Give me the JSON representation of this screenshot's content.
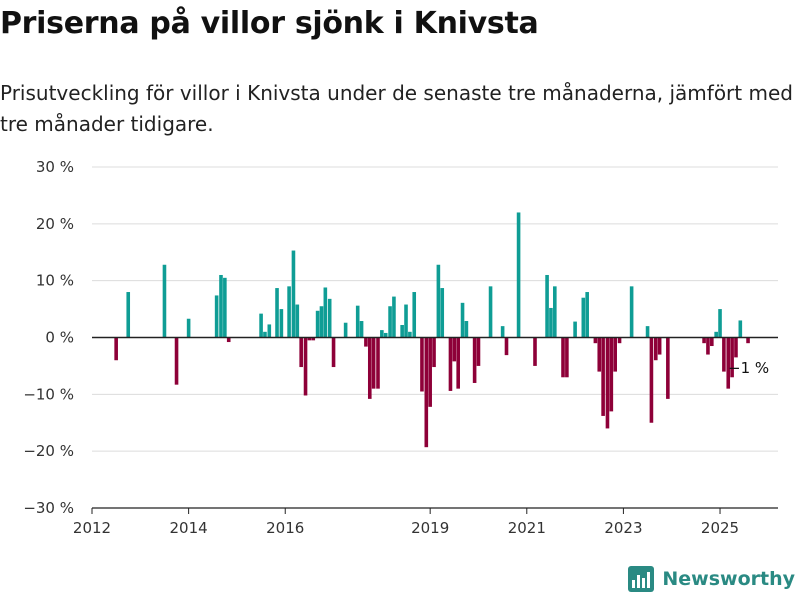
{
  "title": "Priserna på villor sjönk i Knivsta",
  "subtitle": "Prisutveckling för villor i Knivsta under de senaste tre månaderna, jämfört med tre månader tidigare.",
  "brand": {
    "name": "Newsworthy",
    "color": "#2a8a83",
    "icon": "bar-chart-logo-icon"
  },
  "chart_data": {
    "type": "bar",
    "positive_color": "#0f9d95",
    "negative_color": "#8e0038",
    "axis_color": "#222222",
    "grid": true,
    "xlim": [
      2012.0,
      2026.2
    ],
    "ylim": [
      -30,
      30
    ],
    "y_ticks": [
      30,
      20,
      10,
      0,
      -10,
      -20,
      -30
    ],
    "y_tick_labels": [
      "30 %",
      "20 %",
      "10 %",
      "0 %",
      "−10 %",
      "−20 %",
      "−30 %"
    ],
    "x_ticks": [
      2012,
      2014,
      2016,
      2019,
      2021,
      2023,
      2025
    ],
    "x_tick_labels": [
      "2012",
      "2014",
      "2016",
      "2019",
      "2021",
      "2023",
      "2025"
    ],
    "end_label": "−1 %",
    "points": [
      [
        2012.5,
        -4
      ],
      [
        2012.75,
        8
      ],
      [
        2013.5,
        12.8
      ],
      [
        2013.75,
        -8.3
      ],
      [
        2014.0,
        3.3
      ],
      [
        2014.58,
        7.4
      ],
      [
        2014.67,
        11
      ],
      [
        2014.75,
        10.5
      ],
      [
        2014.83,
        -0.8
      ],
      [
        2015.5,
        4.2
      ],
      [
        2015.58,
        1
      ],
      [
        2015.67,
        2.3
      ],
      [
        2015.83,
        8.7
      ],
      [
        2015.92,
        5
      ],
      [
        2016.08,
        9
      ],
      [
        2016.17,
        15.3
      ],
      [
        2016.25,
        5.8
      ],
      [
        2016.33,
        -5.2
      ],
      [
        2016.42,
        -10.2
      ],
      [
        2016.5,
        -0.5
      ],
      [
        2016.58,
        -0.5
      ],
      [
        2016.67,
        4.7
      ],
      [
        2016.75,
        5.5
      ],
      [
        2016.83,
        8.8
      ],
      [
        2016.92,
        6.8
      ],
      [
        2017.0,
        -5.2
      ],
      [
        2017.25,
        2.6
      ],
      [
        2017.5,
        5.6
      ],
      [
        2017.58,
        2.9
      ],
      [
        2017.67,
        -1.6
      ],
      [
        2017.75,
        -10.8
      ],
      [
        2017.83,
        -9
      ],
      [
        2017.92,
        -9
      ],
      [
        2018.0,
        1.3
      ],
      [
        2018.08,
        0.8
      ],
      [
        2018.17,
        5.5
      ],
      [
        2018.25,
        7.2
      ],
      [
        2018.42,
        2.2
      ],
      [
        2018.5,
        5.8
      ],
      [
        2018.58,
        1
      ],
      [
        2018.67,
        8
      ],
      [
        2018.83,
        -9.5
      ],
      [
        2018.92,
        -19.3
      ],
      [
        2019.0,
        -12.2
      ],
      [
        2019.08,
        -5.2
      ],
      [
        2019.17,
        12.8
      ],
      [
        2019.25,
        8.7
      ],
      [
        2019.42,
        -9.4
      ],
      [
        2019.5,
        -4.2
      ],
      [
        2019.58,
        -9
      ],
      [
        2019.67,
        6.1
      ],
      [
        2019.75,
        2.9
      ],
      [
        2019.92,
        -8
      ],
      [
        2020.0,
        -5
      ],
      [
        2020.25,
        9
      ],
      [
        2020.5,
        2
      ],
      [
        2020.58,
        -3.1
      ],
      [
        2020.83,
        22
      ],
      [
        2021.17,
        -5
      ],
      [
        2021.42,
        11
      ],
      [
        2021.5,
        5.2
      ],
      [
        2021.58,
        9
      ],
      [
        2021.75,
        -7
      ],
      [
        2021.83,
        -7
      ],
      [
        2022.0,
        2.8
      ],
      [
        2022.17,
        7
      ],
      [
        2022.25,
        8
      ],
      [
        2022.42,
        -1
      ],
      [
        2022.5,
        -6
      ],
      [
        2022.58,
        -13.8
      ],
      [
        2022.67,
        -16
      ],
      [
        2022.75,
        -13
      ],
      [
        2022.83,
        -6
      ],
      [
        2022.92,
        -1
      ],
      [
        2023.17,
        9
      ],
      [
        2023.5,
        2
      ],
      [
        2023.58,
        -15
      ],
      [
        2023.67,
        -4
      ],
      [
        2023.75,
        -3
      ],
      [
        2023.92,
        -10.8
      ],
      [
        2024.67,
        -1
      ],
      [
        2024.75,
        -3
      ],
      [
        2024.83,
        -1.5
      ],
      [
        2024.92,
        1
      ],
      [
        2025.0,
        5
      ],
      [
        2025.08,
        -6
      ],
      [
        2025.17,
        -9
      ],
      [
        2025.25,
        -7
      ],
      [
        2025.33,
        -3.5
      ],
      [
        2025.42,
        3
      ],
      [
        2025.58,
        -1
      ]
    ]
  }
}
